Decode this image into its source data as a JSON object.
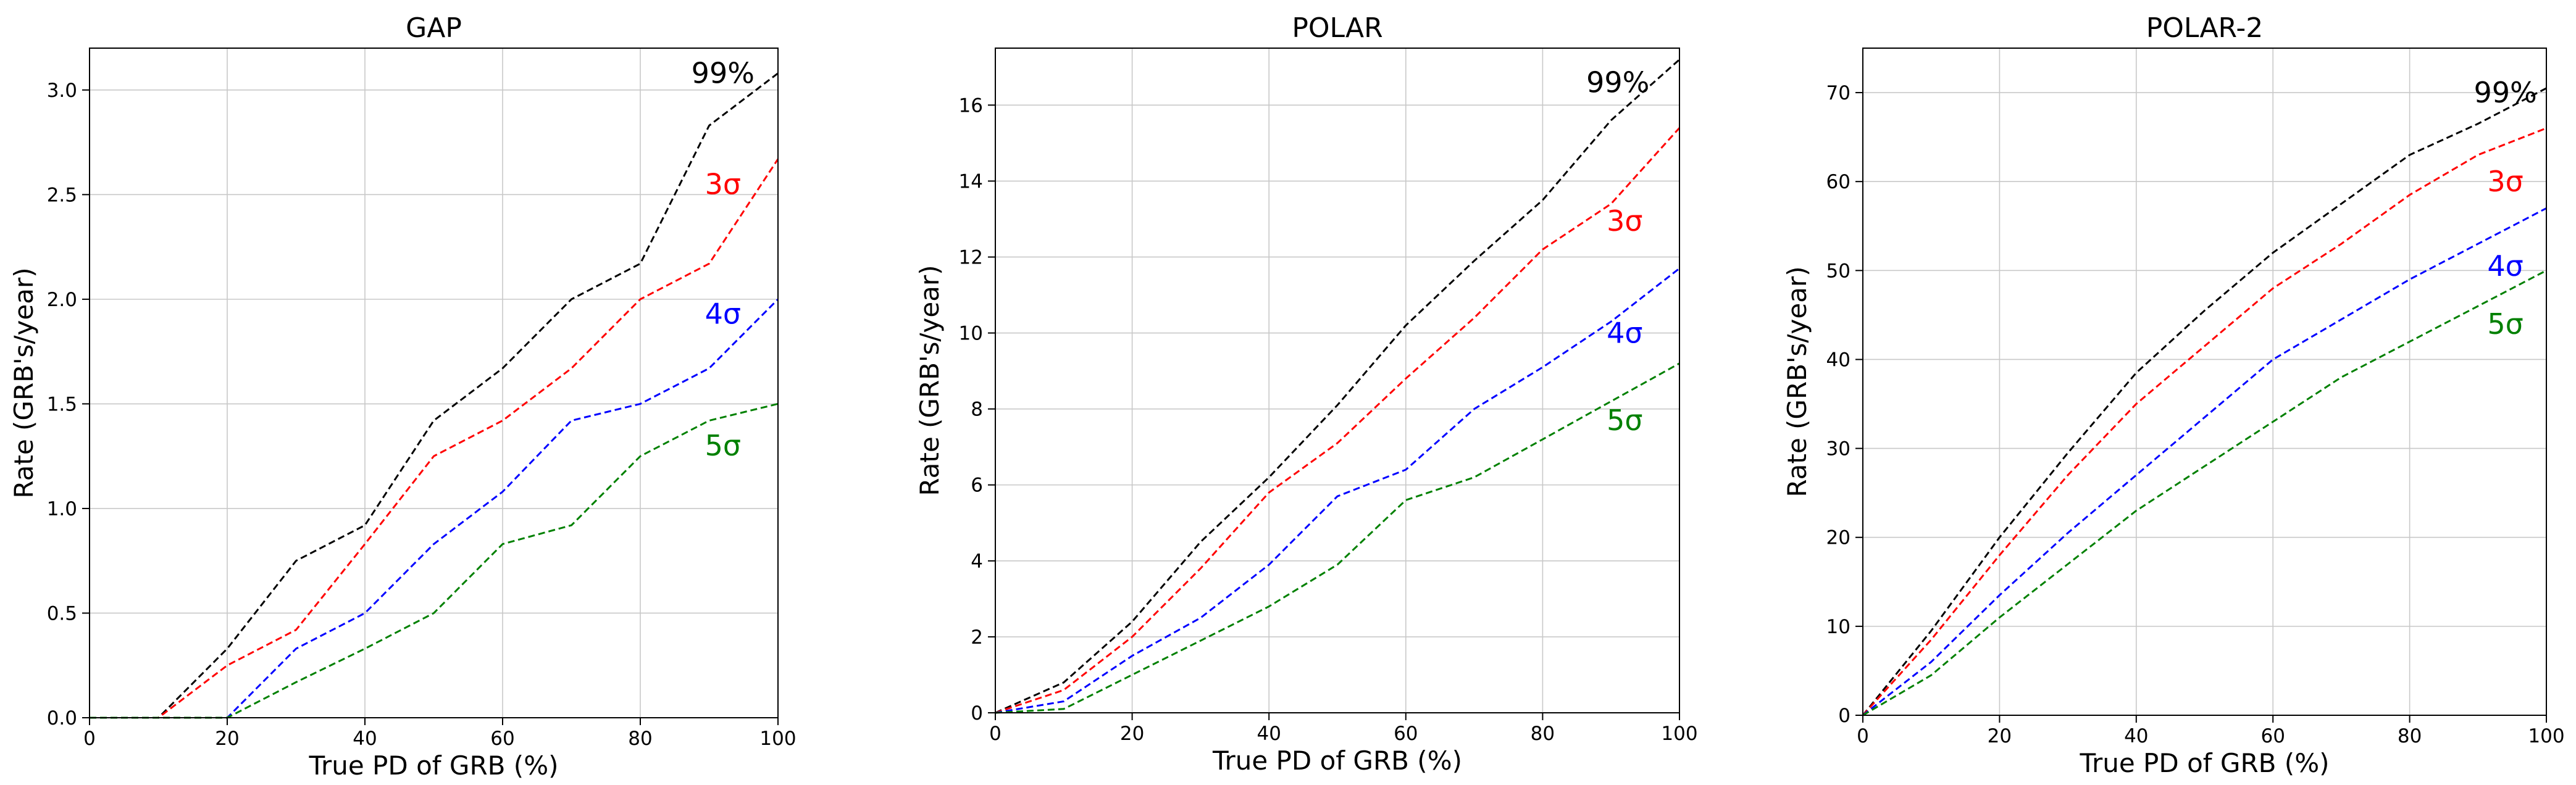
{
  "chart_data": [
    {
      "type": "line",
      "title": "GAP",
      "xlabel": "True PD of GRB (%)",
      "ylabel": "Rate (GRB's/year)",
      "xlim": [
        0,
        100
      ],
      "ylim": [
        0,
        3.2
      ],
      "xticks": [
        0,
        20,
        40,
        60,
        80,
        100
      ],
      "xtick_labels": [
        "0",
        "20",
        "40",
        "60",
        "80",
        "100"
      ],
      "yticks": [
        0,
        0.5,
        1,
        1.5,
        2,
        2.5,
        3
      ],
      "ytick_labels": [
        "0.0",
        "0.5",
        "1.0",
        "1.5",
        "2.0",
        "2.5",
        "3.0"
      ],
      "grid": true,
      "x": [
        0,
        10,
        20,
        30,
        40,
        50,
        60,
        70,
        80,
        90,
        100
      ],
      "series": [
        {
          "name": "99%",
          "color": "#000000",
          "values": [
            0,
            0,
            0.33,
            0.75,
            0.92,
            1.42,
            1.67,
            2.0,
            2.17,
            2.83,
            3.08
          ],
          "label_at": [
            92,
            3.08
          ]
        },
        {
          "name": "3σ",
          "color": "#ff0000",
          "values": [
            0,
            0,
            0.25,
            0.42,
            0.83,
            1.25,
            1.42,
            1.67,
            2.0,
            2.17,
            2.67
          ],
          "label_at": [
            92,
            2.55
          ]
        },
        {
          "name": "4σ",
          "color": "#0000ff",
          "values": [
            0,
            0,
            0,
            0.33,
            0.5,
            0.83,
            1.08,
            1.42,
            1.5,
            1.67,
            2.0
          ],
          "label_at": [
            92,
            1.93
          ]
        },
        {
          "name": "5σ",
          "color": "#008000",
          "values": [
            0,
            0,
            0,
            0.17,
            0.33,
            0.5,
            0.83,
            0.92,
            1.25,
            1.42,
            1.5
          ],
          "label_at": [
            92,
            1.3
          ]
        }
      ]
    },
    {
      "type": "line",
      "title": "POLAR",
      "xlabel": "True PD of GRB (%)",
      "ylabel": "Rate (GRB's/year)",
      "xlim": [
        0,
        100
      ],
      "ylim": [
        0,
        17.5
      ],
      "xticks": [
        0,
        20,
        40,
        60,
        80,
        100
      ],
      "xtick_labels": [
        "0",
        "20",
        "40",
        "60",
        "80",
        "100"
      ],
      "yticks": [
        0,
        2,
        4,
        6,
        8,
        10,
        12,
        14,
        16
      ],
      "ytick_labels": [
        "0",
        "2",
        "4",
        "6",
        "8",
        "10",
        "12",
        "14",
        "16"
      ],
      "grid": true,
      "x": [
        0,
        10,
        20,
        30,
        40,
        50,
        60,
        70,
        80,
        90,
        100
      ],
      "series": [
        {
          "name": "99%",
          "color": "#000000",
          "values": [
            0,
            0.8,
            2.4,
            4.5,
            6.2,
            8.1,
            10.2,
            11.9,
            13.5,
            15.6,
            17.2
          ],
          "label_at": [
            91,
            16.6
          ]
        },
        {
          "name": "3σ",
          "color": "#ff0000",
          "values": [
            0,
            0.6,
            2.0,
            3.8,
            5.8,
            7.1,
            8.8,
            10.4,
            12.2,
            13.4,
            15.4
          ],
          "label_at": [
            92,
            12.95
          ]
        },
        {
          "name": "4σ",
          "color": "#0000ff",
          "values": [
            0,
            0.3,
            1.5,
            2.5,
            3.9,
            5.7,
            6.4,
            8.0,
            9.1,
            10.3,
            11.7
          ],
          "label_at": [
            92,
            10.0
          ]
        },
        {
          "name": "5σ",
          "color": "#008000",
          "values": [
            0,
            0.1,
            1.0,
            1.9,
            2.8,
            3.9,
            5.6,
            6.2,
            7.2,
            8.2,
            9.2
          ],
          "label_at": [
            92,
            7.7
          ]
        }
      ]
    },
    {
      "type": "line",
      "title": "POLAR-2",
      "xlabel": "True PD of GRB (%)",
      "ylabel": "Rate (GRB's/year)",
      "xlim": [
        0,
        100
      ],
      "ylim": [
        0,
        75
      ],
      "xticks": [
        0,
        20,
        40,
        60,
        80,
        100
      ],
      "xtick_labels": [
        "0",
        "20",
        "40",
        "60",
        "80",
        "100"
      ],
      "yticks": [
        0,
        10,
        20,
        30,
        40,
        50,
        60,
        70
      ],
      "ytick_labels": [
        "0",
        "10",
        "20",
        "30",
        "40",
        "50",
        "60",
        "70"
      ],
      "grid": true,
      "x": [
        0,
        10,
        20,
        30,
        40,
        50,
        60,
        70,
        80,
        90,
        100
      ],
      "series": [
        {
          "name": "99%",
          "color": "#000000",
          "values": [
            0,
            9.5,
            20,
            29.5,
            38.5,
            45.5,
            52,
            57.5,
            63,
            66.5,
            70.5
          ],
          "label_at": [
            94,
            70.0
          ]
        },
        {
          "name": "3σ",
          "color": "#ff0000",
          "values": [
            0,
            8.5,
            18,
            27,
            35,
            41.5,
            48,
            53,
            58.5,
            63,
            66
          ],
          "label_at": [
            94,
            60.0
          ]
        },
        {
          "name": "4σ",
          "color": "#0000ff",
          "values": [
            0,
            6,
            13.5,
            20.5,
            27,
            33.5,
            40,
            44.5,
            49,
            53,
            57
          ],
          "label_at": [
            94,
            50.5
          ]
        },
        {
          "name": "5σ",
          "color": "#008000",
          "values": [
            0,
            4.5,
            11,
            17,
            23,
            28,
            33,
            38,
            42,
            46,
            50
          ],
          "label_at": [
            94,
            44.0
          ]
        }
      ]
    }
  ]
}
